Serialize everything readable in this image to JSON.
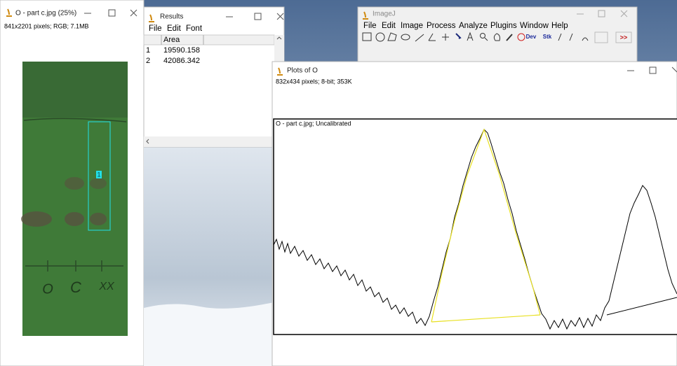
{
  "image_window": {
    "title": "O - part c.jpg (25%)",
    "info": "841x2201 pixels; RGB; 7.1MB",
    "roi_label": "1",
    "lane_labels": [
      "O",
      "C",
      "XX"
    ]
  },
  "results_window": {
    "title": "Results",
    "menu": [
      "File",
      "Edit",
      "Font"
    ],
    "columns": [
      "Area"
    ],
    "rows": [
      [
        "1",
        "19590.158"
      ],
      [
        "2",
        "42086.342"
      ]
    ]
  },
  "imagej_window": {
    "title": "ImageJ",
    "menu": [
      "File",
      "Edit",
      "Image",
      "Process",
      "Analyze",
      "Plugins",
      "Window",
      "Help"
    ],
    "tools": [
      "Dev",
      "Stk",
      ">>"
    ]
  },
  "plot_window": {
    "title": "Plots of O",
    "info": "832x434 pixels; 8-bit; 353K",
    "plot_label": "O - part c.jpg; Uncalibrated"
  }
}
